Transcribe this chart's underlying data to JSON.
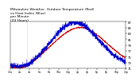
{
  "title": "Milwaukee Weather  Outdoor Temperature (Red)\nvs Heat Index (Blue)\nper Minute\n(24 Hours)",
  "title_fontsize": 3.2,
  "bg_color": "#ffffff",
  "ylim": [
    71,
    87
  ],
  "yticks": [
    71,
    73,
    75,
    77,
    79,
    81,
    83,
    85,
    87
  ],
  "ytick_fontsize": 2.8,
  "xtick_fontsize": 2.3,
  "line_color_red": "#cc0000",
  "line_color_blue": "#0000cc",
  "vline_x_hour": 3.5,
  "n_points": 1440,
  "temp_seed": 7,
  "heat_seed": 13
}
